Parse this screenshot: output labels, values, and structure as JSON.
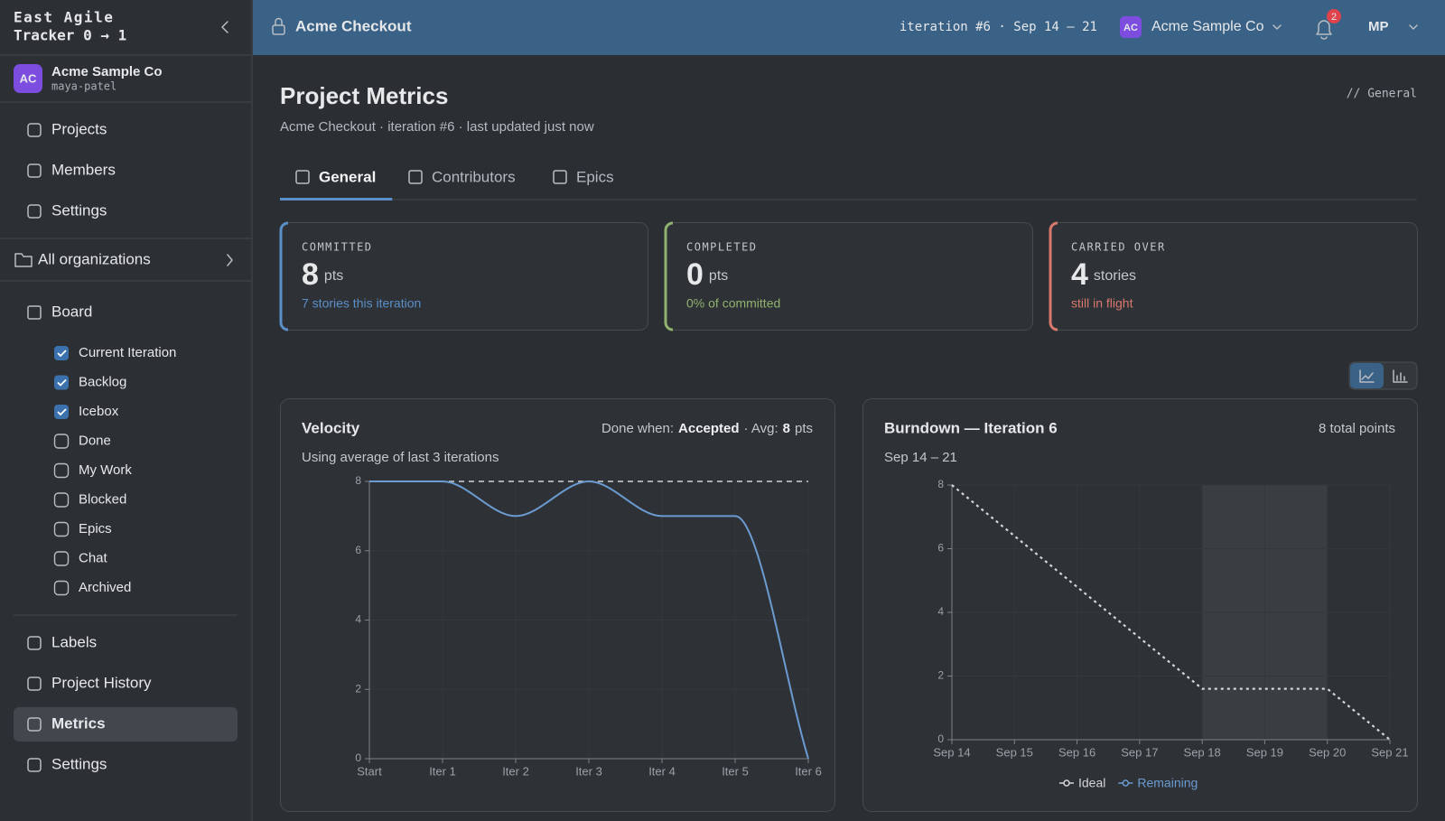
{
  "sidebar": {
    "brand": [
      "East Agile",
      "Tracker 0 → 1"
    ],
    "org": {
      "initials": "AC",
      "name": "Acme Sample Co",
      "handle": "maya-patel"
    },
    "nav": [
      "Projects",
      "Members",
      "Settings"
    ],
    "all_orgs": "All organizations",
    "board": "Board",
    "filters": [
      {
        "label": "Current Iteration",
        "checked": true
      },
      {
        "label": "Backlog",
        "checked": true
      },
      {
        "label": "Icebox",
        "checked": true
      },
      {
        "label": "Done",
        "checked": false
      },
      {
        "label": "My Work",
        "checked": false
      },
      {
        "label": "Blocked",
        "checked": false
      },
      {
        "label": "Epics",
        "checked": false
      },
      {
        "label": "Chat",
        "checked": false
      },
      {
        "label": "Archived",
        "checked": false
      }
    ],
    "bottom_nav": [
      "Labels",
      "Project History",
      "Metrics",
      "Settings"
    ],
    "active": "Metrics"
  },
  "topbar": {
    "project": "Acme Checkout",
    "iteration": "iteration #6 · Sep 14 – 21",
    "org_initials": "AC",
    "org": "Acme Sample Co",
    "notifications": 2,
    "user": "MP"
  },
  "page": {
    "title": "Project Metrics",
    "subtitle": "Acme Checkout · iteration #6 · last updated just now",
    "breadcrumb": "// General",
    "tabs": [
      "General",
      "Contributors",
      "Epics"
    ],
    "active_tab": "General",
    "cards": [
      {
        "label": "COMMITTED",
        "value": 8,
        "unit": "pts",
        "caption": "7 stories this iteration",
        "color": "#5b8fc7"
      },
      {
        "label": "COMPLETED",
        "value": 0,
        "unit": "pts",
        "caption": "0% of committed",
        "color": "#8fb26e"
      },
      {
        "label": "CARRIED OVER",
        "value": 4,
        "unit": "stories",
        "caption": "still in flight",
        "color": "#d9786c"
      }
    ]
  },
  "chart_data": [
    {
      "type": "line",
      "title": "Velocity",
      "done_when_label": "Done when:",
      "done_when": "Accepted",
      "avg_label": "· Avg:",
      "avg": 8,
      "avg_unit": "pts",
      "subtitle": "Using average of last 3 iterations",
      "categories": [
        "Start",
        "Iter 1",
        "Iter 2",
        "Iter 3",
        "Iter 4",
        "Iter 5",
        "Iter 6"
      ],
      "values": [
        8,
        8,
        7,
        8,
        7,
        7,
        0
      ],
      "color": "#6b9bd1",
      "avg_color": "#cfd2d5",
      "ylim": [
        0,
        8
      ],
      "yticks": [
        0,
        2,
        4,
        6,
        8
      ],
      "grid": true,
      "curve": "smooth"
    },
    {
      "type": "line",
      "title": "Burndown — Iteration 6",
      "total": "8 total points",
      "subtitle": "Sep 14 – 21",
      "categories": [
        "Sep 14",
        "Sep 15",
        "Sep 16",
        "Sep 17",
        "Sep 18",
        "Sep 19",
        "Sep 20",
        "Sep 21"
      ],
      "series": [
        {
          "name": "Ideal",
          "color": "#d4d6d8",
          "dash": "dotted",
          "values": [
            8,
            6.4,
            4.8,
            3.2,
            1.6,
            1.6,
            1.6,
            0
          ]
        },
        {
          "name": "Remaining",
          "color": "#6b9bd1",
          "values": [
            null,
            null,
            null,
            null,
            null,
            null,
            null,
            null
          ]
        }
      ],
      "highlight": [
        "Sep 18",
        "Sep 20"
      ],
      "ylim": [
        0,
        8
      ],
      "yticks": [
        0,
        2,
        4,
        6,
        8
      ],
      "grid": true,
      "curve": "linear",
      "legend": "bottom"
    }
  ]
}
